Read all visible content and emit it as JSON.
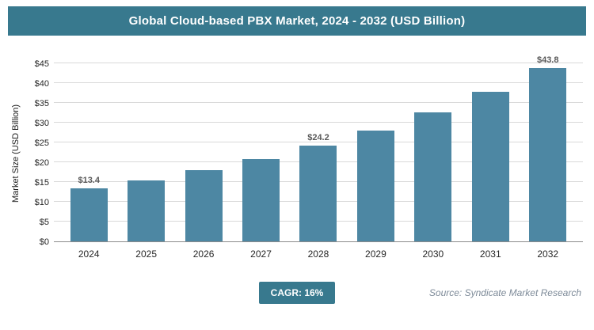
{
  "header": {
    "title": "Global Cloud-based PBX Market, 2024 - 2032 (USD Billion)"
  },
  "chart_data": {
    "type": "bar",
    "title": "Global Cloud-based PBX Market, 2024 - 2032 (USD Billion)",
    "categories": [
      "2024",
      "2025",
      "2026",
      "2027",
      "2028",
      "2029",
      "2030",
      "2031",
      "2032"
    ],
    "values": [
      13.4,
      15.5,
      18.0,
      20.9,
      24.2,
      28.1,
      32.6,
      37.8,
      43.8
    ],
    "data_labels": [
      "$13.4",
      "",
      "",
      "",
      "$24.2",
      "",
      "",
      "",
      "$43.8"
    ],
    "xlabel": "",
    "ylabel": "Market Size (USD Billion)",
    "ylim": [
      0,
      45
    ],
    "ytick_step": 5,
    "yticks": [
      "$0",
      "$5",
      "$10",
      "$15",
      "$20",
      "$25",
      "$30",
      "$35",
      "$40",
      "$45"
    ],
    "grid": true,
    "legend": "none",
    "bar_color": "#4d87a3"
  },
  "footer": {
    "cagr_label": "CAGR: 16%",
    "source": "Source: Syndicate Market Research"
  },
  "colors": {
    "header_background": "#38798e",
    "bar": "#4d87a3",
    "gridline": "#d9d9d9",
    "badge_background": "#38798e",
    "source_text": "#7e8b99"
  }
}
